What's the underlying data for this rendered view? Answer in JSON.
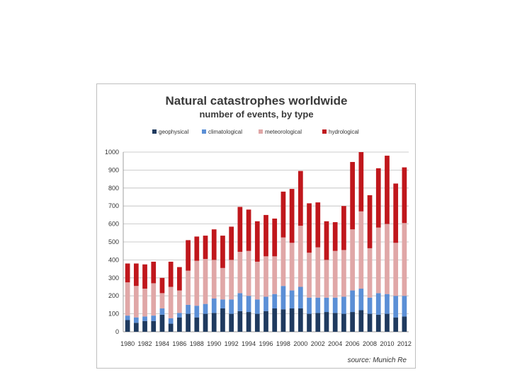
{
  "chart_data": {
    "type": "bar",
    "stacked": true,
    "title": "Natural catastrophes worldwide",
    "subtitle": "number of events, by type",
    "source": "source: Munich Re",
    "ylim": [
      0,
      1000
    ],
    "yticks": [
      0,
      100,
      200,
      300,
      400,
      500,
      600,
      700,
      800,
      900,
      1000
    ],
    "xtick_labels": [
      "1980",
      "1982",
      "1984",
      "1986",
      "1988",
      "1990",
      "1992",
      "1994",
      "1996",
      "1998",
      "2000",
      "2002",
      "2004",
      "2006",
      "2008",
      "2010",
      "2012"
    ],
    "categories": [
      "1980",
      "1981",
      "1982",
      "1983",
      "1984",
      "1985",
      "1986",
      "1987",
      "1988",
      "1989",
      "1990",
      "1991",
      "1992",
      "1993",
      "1994",
      "1995",
      "1996",
      "1997",
      "1998",
      "1999",
      "2000",
      "2001",
      "2002",
      "2003",
      "2004",
      "2005",
      "2006",
      "2007",
      "2008",
      "2009",
      "2010",
      "2011",
      "2012"
    ],
    "legend_position": "top",
    "grid": true,
    "series": [
      {
        "name": "geophysical",
        "color": "#1f3a5f",
        "values": [
          65,
          50,
          60,
          60,
          95,
          45,
          80,
          100,
          80,
          100,
          105,
          130,
          100,
          115,
          110,
          100,
          115,
          130,
          125,
          130,
          130,
          100,
          105,
          110,
          105,
          100,
          110,
          120,
          100,
          95,
          100,
          80,
          85
        ]
      },
      {
        "name": "climatological",
        "color": "#5b8fd6",
        "values": [
          25,
          30,
          25,
          30,
          35,
          30,
          25,
          50,
          65,
          55,
          80,
          50,
          80,
          100,
          90,
          80,
          80,
          80,
          130,
          100,
          120,
          90,
          85,
          80,
          85,
          95,
          120,
          120,
          90,
          120,
          110,
          120,
          115
        ]
      },
      {
        "name": "meteorological",
        "color": "#e0a7a7",
        "values": [
          185,
          175,
          155,
          180,
          85,
          175,
          125,
          190,
          250,
          250,
          215,
          175,
          220,
          230,
          250,
          210,
          225,
          210,
          270,
          265,
          340,
          250,
          280,
          210,
          260,
          260,
          340,
          430,
          275,
          365,
          390,
          295,
          405
        ]
      },
      {
        "name": "hydrological",
        "color": "#c0171c",
        "values": [
          105,
          125,
          135,
          120,
          85,
          140,
          130,
          170,
          135,
          130,
          170,
          180,
          185,
          250,
          230,
          225,
          230,
          210,
          255,
          300,
          305,
          275,
          250,
          215,
          160,
          245,
          375,
          330,
          295,
          330,
          380,
          330,
          310
        ]
      }
    ]
  }
}
